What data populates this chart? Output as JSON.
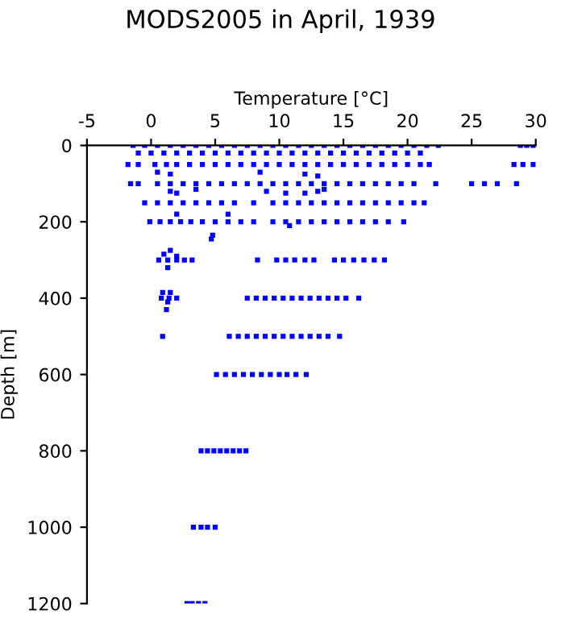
{
  "chart_data": {
    "type": "scatter",
    "title": "MODS2005 in April, 1939",
    "xlabel": "Temperature [°C]",
    "ylabel": "Depth [m]",
    "xlim": [
      -5,
      30
    ],
    "xticks": [
      -5,
      0,
      5,
      10,
      15,
      20,
      25,
      30
    ],
    "ylim": [
      1200,
      0
    ],
    "yticks": [
      0,
      200,
      400,
      600,
      800,
      1000,
      1200
    ],
    "grid": false,
    "legend": false,
    "marker": "square",
    "series": [
      {
        "color": "#0000ff",
        "x": [
          -1.4,
          -0.5,
          0.5,
          1.5,
          2.5,
          3.5,
          4.5,
          5.5,
          6.5,
          7.5,
          8.5,
          9.5,
          10.5,
          11.5,
          12.5,
          13.5,
          14.5,
          15.5,
          16.5,
          17.5,
          18.5,
          19.5,
          20.5,
          21.5,
          22.4,
          28.8,
          29.3,
          29.8
        ],
        "values": [
          0,
          0,
          0,
          0,
          0,
          0,
          0,
          0,
          0,
          0,
          0,
          0,
          0,
          0,
          0,
          0,
          0,
          0,
          0,
          0,
          0,
          0,
          0,
          0,
          0,
          0,
          0,
          0
        ]
      },
      {
        "color": "#0000ff",
        "x": [
          -1,
          0,
          1,
          2,
          3,
          4,
          5,
          6,
          7,
          8,
          9,
          10,
          11,
          12,
          13,
          14,
          15,
          16,
          17,
          18,
          19,
          20,
          21
        ],
        "values": [
          20,
          20,
          20,
          20,
          20,
          20,
          20,
          20,
          20,
          20,
          20,
          20,
          20,
          20,
          20,
          20,
          20,
          20,
          20,
          20,
          20,
          20,
          20
        ]
      },
      {
        "color": "#0000ff",
        "x": [
          -1.8,
          -1,
          0.3,
          1.2,
          2,
          3,
          4,
          5,
          6,
          7,
          8,
          9,
          10,
          11,
          12,
          13,
          14,
          15,
          16,
          17,
          18,
          19,
          20,
          21,
          21.7,
          28.3,
          29,
          29.8
        ],
        "values": [
          50,
          50,
          50,
          50,
          50,
          50,
          50,
          50,
          50,
          50,
          50,
          50,
          50,
          50,
          50,
          50,
          50,
          50,
          50,
          50,
          50,
          50,
          50,
          50,
          50,
          50,
          50,
          50
        ]
      },
      {
        "color": "#0000ff",
        "x": [
          -1.6,
          -1,
          0.5,
          1.5,
          2.5,
          3.5,
          4.5,
          5.5,
          6.5,
          7.5,
          8.5,
          9.5,
          10.5,
          11.5,
          12.5,
          13.5,
          14.5,
          15.5,
          16.5,
          17.5,
          18.5,
          19.5,
          20.5,
          22.2,
          25,
          26,
          27,
          28.5
        ],
        "values": [
          100,
          100,
          100,
          100,
          100,
          100,
          100,
          100,
          100,
          100,
          100,
          100,
          100,
          100,
          100,
          100,
          100,
          100,
          100,
          100,
          100,
          100,
          100,
          100,
          100,
          100,
          100,
          100
        ]
      },
      {
        "color": "#0000ff",
        "x": [
          -0.5,
          0.5,
          1.5,
          2.5,
          3.5,
          4.5,
          5.5,
          6.5,
          8,
          9.5,
          10.5,
          11.5,
          12.5,
          13.5,
          14.5,
          15.5,
          16.5,
          17.5,
          18.5,
          19.5,
          20.5,
          21.3
        ],
        "values": [
          150,
          150,
          150,
          150,
          150,
          150,
          150,
          150,
          150,
          150,
          150,
          150,
          150,
          150,
          150,
          150,
          150,
          150,
          150,
          150,
          150,
          150
        ]
      },
      {
        "color": "#0000ff",
        "x": [
          -0.1,
          0.7,
          1.5,
          2.3,
          3.1,
          4,
          5,
          6,
          7,
          8,
          9.5,
          10.5,
          11.5,
          12.5,
          13.5,
          14.5,
          15.5,
          16.5,
          17.5,
          18.5,
          19.7
        ],
        "values": [
          200,
          200,
          200,
          200,
          200,
          200,
          200,
          200,
          200,
          200,
          200,
          200,
          200,
          200,
          200,
          200,
          200,
          200,
          200,
          200,
          200
        ]
      },
      {
        "color": "#0000ff",
        "x": [
          0.6,
          1.3,
          2,
          2.6,
          3.2,
          8.3,
          9.8,
          10.5,
          11.2,
          12,
          12.7,
          14.3,
          15,
          15.8,
          16.6,
          17.4,
          18.2
        ],
        "values": [
          300,
          300,
          300,
          300,
          300,
          300,
          300,
          300,
          300,
          300,
          300,
          300,
          300,
          300,
          300,
          300,
          300
        ]
      },
      {
        "color": "#0000ff",
        "x": [
          0.8,
          1.4,
          2,
          7.5,
          8.2,
          8.9,
          9.6,
          10.3,
          11,
          11.7,
          12.4,
          13.1,
          13.8,
          14.5,
          15.2,
          16.2
        ],
        "values": [
          400,
          400,
          400,
          400,
          400,
          400,
          400,
          400,
          400,
          400,
          400,
          400,
          400,
          400,
          400,
          400
        ]
      },
      {
        "color": "#0000ff",
        "x": [
          0.9,
          6.1,
          6.8,
          7.5,
          8.2,
          8.9,
          9.6,
          10.3,
          11,
          11.7,
          12.4,
          13.1,
          13.8,
          14.7
        ],
        "values": [
          500,
          500,
          500,
          500,
          500,
          500,
          500,
          500,
          500,
          500,
          500,
          500,
          500,
          500
        ]
      },
      {
        "color": "#0000ff",
        "x": [
          5.1,
          5.8,
          6.5,
          7.2,
          7.9,
          8.6,
          9.3,
          10,
          10.6,
          11.3,
          12.1
        ],
        "values": [
          600,
          600,
          600,
          600,
          600,
          600,
          600,
          600,
          600,
          600,
          600
        ]
      },
      {
        "color": "#0000ff",
        "x": [
          3.9,
          4.4,
          4.9,
          5.4,
          5.9,
          6.4,
          6.9,
          7.4
        ],
        "values": [
          800,
          800,
          800,
          800,
          800,
          800,
          800,
          800
        ]
      },
      {
        "color": "#0000ff",
        "x": [
          3.3,
          3.9,
          4.4,
          5.0
        ],
        "values": [
          1000,
          1000,
          1000,
          1000
        ]
      },
      {
        "color": "#0000ff",
        "x": [
          2.8,
          3.2,
          3.7,
          4.2
        ],
        "values": [
          1200,
          1200,
          1200,
          1200
        ]
      },
      {
        "color": "#0000ff",
        "x": [
          0.5,
          1.5,
          8.5,
          12,
          13,
          1.5,
          2,
          3.5,
          9,
          10.5,
          12,
          13,
          13.5,
          2,
          6,
          10.8,
          4.8,
          4.7,
          1,
          1.5,
          2,
          1.3,
          0.9,
          1.5,
          1.3,
          1.2
        ],
        "values": [
          70,
          75,
          70,
          75,
          80,
          120,
          125,
          115,
          120,
          125,
          125,
          120,
          115,
          180,
          180,
          210,
          235,
          245,
          285,
          275,
          290,
          320,
          385,
          385,
          410,
          430
        ]
      }
    ]
  }
}
